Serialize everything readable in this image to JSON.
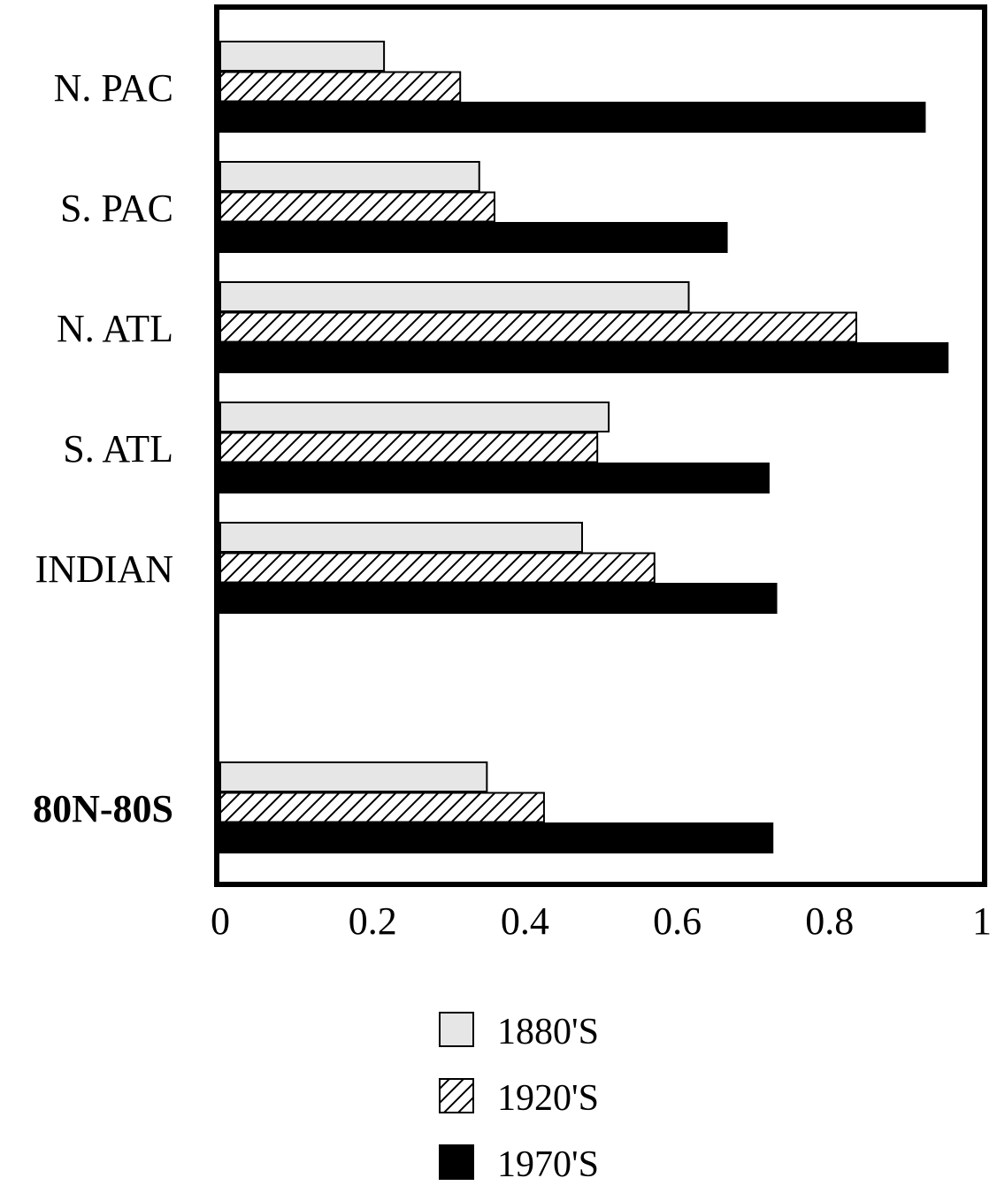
{
  "chart_data": {
    "type": "bar",
    "orientation": "horizontal",
    "title": "",
    "xlabel": "",
    "ylabel": "",
    "categories": [
      "N. PAC",
      "S. PAC",
      "N. ATL",
      "S. ATL",
      "INDIAN",
      "80N-80S"
    ],
    "bold_categories": [
      "80N-80S"
    ],
    "series": [
      {
        "name": "1880'S",
        "values": [
          0.215,
          0.34,
          0.615,
          0.51,
          0.475,
          0.35
        ],
        "fill": "#e6e6e6",
        "pattern": "solid"
      },
      {
        "name": "1920'S",
        "values": [
          0.315,
          0.36,
          0.835,
          0.495,
          0.57,
          0.425
        ],
        "fill": "#ffffff",
        "pattern": "diagonal-hatch"
      },
      {
        "name": "1970'S",
        "values": [
          0.925,
          0.665,
          0.955,
          0.72,
          0.73,
          0.725
        ],
        "fill": "#000000",
        "pattern": "solid"
      }
    ],
    "xlim": [
      0,
      1
    ],
    "xticks": [
      "0",
      "0.2",
      "0.4",
      "0.6",
      "0.8",
      "1"
    ],
    "xtick_values": [
      0,
      0.2,
      0.4,
      0.6,
      0.8,
      1
    ],
    "grid": false,
    "legend_position": "bottom-center"
  }
}
